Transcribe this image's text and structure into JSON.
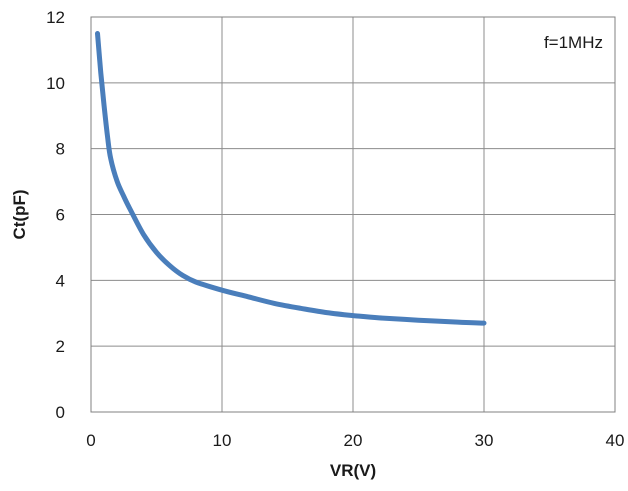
{
  "chart_data": {
    "type": "line",
    "title": "",
    "xlabel": "VR(V)",
    "ylabel": "Ct(pF)",
    "annotation": "f=1MHz",
    "xlim": [
      0,
      40
    ],
    "ylim": [
      0,
      12
    ],
    "xticks": [
      0,
      10,
      20,
      30,
      40
    ],
    "yticks": [
      0,
      2,
      4,
      6,
      8,
      10,
      12
    ],
    "grid": true,
    "legend": "none",
    "series": [
      {
        "color": "#4a7ebb",
        "x": [
          0.5,
          0.75,
          1,
          1.25,
          1.5,
          2,
          2.5,
          3,
          4,
          5,
          6,
          7,
          8,
          10,
          12,
          14,
          16,
          18,
          20,
          22,
          25,
          28,
          30
        ],
        "y": [
          11.5,
          10.3,
          9.3,
          8.4,
          7.7,
          7.0,
          6.55,
          6.15,
          5.4,
          4.85,
          4.45,
          4.15,
          3.95,
          3.7,
          3.5,
          3.3,
          3.15,
          3.02,
          2.93,
          2.86,
          2.79,
          2.73,
          2.7
        ]
      }
    ]
  }
}
